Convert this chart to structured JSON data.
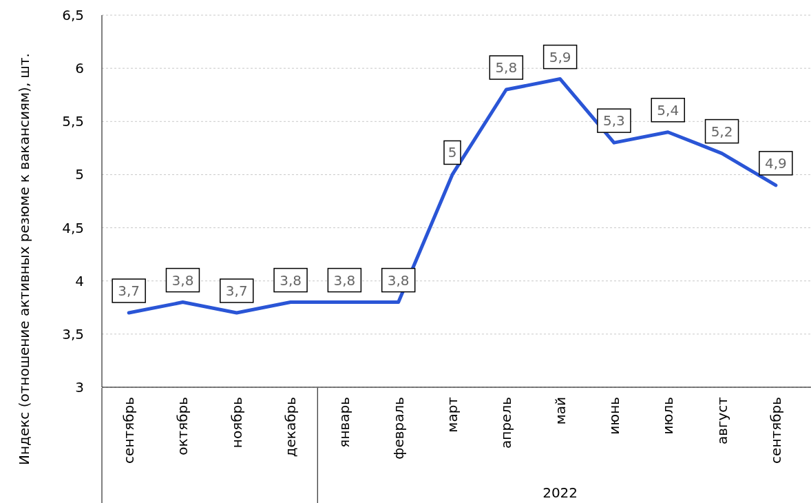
{
  "chart_data": {
    "type": "line",
    "ylabel": "Индекс (отношение активных резюме к вакансиям), шт.",
    "categories": [
      "сентябрь",
      "октябрь",
      "ноябрь",
      "декабрь",
      "январь",
      "февраль",
      "март",
      "апрель",
      "май",
      "июнь",
      "июль",
      "август",
      "сентябрь"
    ],
    "series": [
      {
        "color": "#2a55d6",
        "values": [
          3.7,
          3.8,
          3.7,
          3.8,
          3.8,
          3.8,
          5,
          5.8,
          5.9,
          5.3,
          5.4,
          5.2,
          4.9
        ],
        "value_labels": [
          "3,7",
          "3,8",
          "3,7",
          "3,8",
          "3,8",
          "3,8",
          "5",
          "5,8",
          "5,9",
          "5,3",
          "5,4",
          "5,2",
          "4,9"
        ]
      }
    ],
    "ylim": [
      3,
      6.5
    ],
    "yticks": [
      3,
      {
        "value": 3.5,
        "label": "3,5"
      },
      4,
      {
        "value": 4.5,
        "label": "4,5"
      },
      5,
      {
        "value": 5.5,
        "label": "5,5"
      },
      6,
      {
        "value": 6.5,
        "label": "6,5"
      }
    ],
    "grid": "y",
    "marker": "none",
    "line_style": "solid",
    "annotations": [
      "2022"
    ]
  }
}
